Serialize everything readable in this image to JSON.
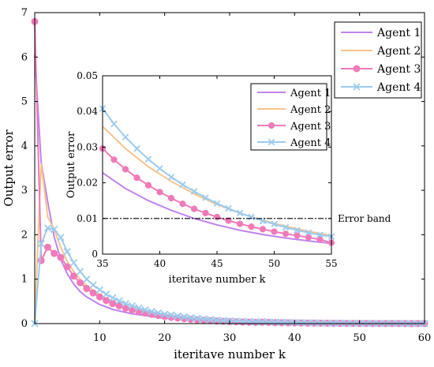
{
  "chart_data": [
    {
      "id": "main",
      "type": "line",
      "xlabel": "iteritave number k",
      "ylabel": "Output error",
      "xlim": [
        0,
        60
      ],
      "ylim": [
        0,
        7
      ],
      "xticks": [
        10,
        20,
        30,
        40,
        50,
        60
      ],
      "yticks": [
        0,
        1,
        2,
        3,
        4,
        5,
        6,
        7
      ],
      "legend_position": "top-right",
      "series": [
        {
          "name": "Agent 1",
          "color": "#c183ef",
          "marker": "none",
          "x": [
            0,
            1,
            2,
            3,
            4,
            5,
            6,
            7,
            8,
            10,
            12,
            15,
            20,
            25,
            30,
            35,
            40,
            45,
            50,
            55,
            60
          ],
          "y": [
            6.05,
            3.62,
            2.74,
            1.95,
            1.45,
            1.12,
            0.89,
            0.72,
            0.6,
            0.43,
            0.32,
            0.22,
            0.12,
            0.07,
            0.04,
            0.023,
            0.013,
            0.007,
            0.004,
            0.002,
            0.001
          ]
        },
        {
          "name": "Agent 2",
          "color": "#f7c48e",
          "marker": "none",
          "x": [
            0,
            1,
            2,
            3,
            4,
            5,
            6,
            7,
            8,
            10,
            12,
            15,
            20,
            25,
            30,
            35,
            40,
            45,
            50,
            55,
            60
          ],
          "y": [
            0.1,
            3.6,
            2.4,
            2.12,
            1.72,
            1.4,
            1.17,
            0.99,
            0.85,
            0.64,
            0.5,
            0.35,
            0.2,
            0.12,
            0.07,
            0.036,
            0.02,
            0.011,
            0.006,
            0.003,
            0.002
          ]
        },
        {
          "name": "Agent 3",
          "color": "#f07ab8",
          "marker": "circle",
          "x": [
            0,
            1,
            2,
            3,
            4,
            5,
            6,
            7,
            8,
            9,
            10,
            11,
            12,
            13,
            14,
            15,
            16,
            17,
            18,
            19,
            20,
            21,
            22,
            23,
            24,
            25,
            26,
            27,
            28,
            29,
            30,
            31,
            32,
            33,
            34,
            35,
            36,
            37,
            38,
            39,
            40,
            41,
            42,
            43,
            44,
            45,
            46,
            47,
            48,
            49,
            50,
            51,
            52,
            53,
            54,
            55,
            56,
            57,
            58,
            59,
            60
          ],
          "y": [
            6.8,
            1.42,
            1.72,
            1.58,
            1.49,
            1.28,
            1.07,
            0.92,
            0.79,
            0.69,
            0.6,
            0.52,
            0.45,
            0.4,
            0.35,
            0.31,
            0.27,
            0.24,
            0.21,
            0.185,
            0.16,
            0.14,
            0.125,
            0.11,
            0.097,
            0.085,
            0.075,
            0.066,
            0.058,
            0.051,
            0.045,
            0.04,
            0.035,
            0.031,
            0.027,
            0.03,
            0.026,
            0.022,
            0.019,
            0.017,
            0.015,
            0.013,
            0.011,
            0.01,
            0.009,
            0.008,
            0.007,
            0.006,
            0.005,
            0.0045,
            0.004,
            0.0035,
            0.003,
            0.0027,
            0.0024,
            0.003,
            0.002,
            0.0018,
            0.0016,
            0.0014,
            0.0012
          ]
        },
        {
          "name": "Agent 4",
          "color": "#9ccbee",
          "marker": "x",
          "x": [
            0,
            1,
            2,
            3,
            4,
            5,
            6,
            7,
            8,
            9,
            10,
            11,
            12,
            13,
            14,
            15,
            16,
            17,
            18,
            19,
            20,
            21,
            22,
            23,
            24,
            25,
            26,
            27,
            28,
            29,
            30,
            31,
            32,
            33,
            34,
            35,
            36,
            37,
            38,
            39,
            40,
            41,
            42,
            43,
            44,
            45,
            46,
            47,
            48,
            49,
            50,
            51,
            52,
            53,
            54,
            55,
            56,
            57,
            58,
            59,
            60
          ],
          "y": [
            0,
            1.8,
            2.15,
            2.12,
            1.94,
            1.62,
            1.37,
            1.17,
            1.0,
            0.87,
            0.76,
            0.66,
            0.58,
            0.51,
            0.45,
            0.4,
            0.35,
            0.31,
            0.27,
            0.24,
            0.21,
            0.19,
            0.17,
            0.15,
            0.13,
            0.115,
            0.1,
            0.09,
            0.08,
            0.07,
            0.062,
            0.055,
            0.049,
            0.044,
            0.039,
            0.041,
            0.036,
            0.032,
            0.029,
            0.026,
            0.023,
            0.02,
            0.018,
            0.016,
            0.014,
            0.013,
            0.011,
            0.01,
            0.009,
            0.008,
            0.007,
            0.0065,
            0.006,
            0.0052,
            0.0047,
            0.0042,
            0.0037,
            0.0033,
            0.003,
            0.0027,
            0.0024
          ]
        }
      ]
    },
    {
      "id": "inset",
      "type": "line",
      "xlabel": "iteritave number k",
      "ylabel": "Output error",
      "xlim": [
        35,
        55
      ],
      "ylim": [
        0,
        0.05
      ],
      "xticks": [
        35,
        40,
        45,
        50,
        55
      ],
      "yticks": [
        "0",
        "0.01",
        "0.02",
        "0.03",
        "0.04",
        "0.05"
      ],
      "legend_position": "top-right",
      "annotations": [
        {
          "text": "Error band",
          "y": 0.01
        }
      ],
      "series": [
        {
          "name": "Agent 1",
          "color": "#c183ef",
          "marker": "none",
          "x": [
            35,
            37,
            39,
            41,
            43,
            45,
            47,
            49,
            51,
            53,
            55
          ],
          "y": [
            0.0228,
            0.0184,
            0.015,
            0.0123,
            0.01,
            0.0082,
            0.0067,
            0.0055,
            0.0045,
            0.0037,
            0.003
          ]
        },
        {
          "name": "Agent 2",
          "color": "#f7c48e",
          "marker": "none",
          "x": [
            35,
            37,
            39,
            41,
            43,
            45,
            47,
            49,
            51,
            53,
            55
          ],
          "y": [
            0.0358,
            0.0296,
            0.0245,
            0.0204,
            0.0169,
            0.0139,
            0.0115,
            0.0095,
            0.0078,
            0.0064,
            0.0052
          ]
        },
        {
          "name": "Agent 3",
          "color": "#f07ab8",
          "marker": "circle",
          "x": [
            35,
            36,
            37,
            38,
            39,
            40,
            41,
            42,
            43,
            44,
            45,
            46,
            47,
            48,
            49,
            50,
            51,
            52,
            53,
            54,
            55
          ],
          "y": [
            0.0296,
            0.0265,
            0.0238,
            0.0214,
            0.0193,
            0.0174,
            0.0157,
            0.0141,
            0.0127,
            0.0115,
            0.0104,
            0.0094,
            0.0085,
            0.0077,
            0.007,
            0.0063,
            0.0057,
            0.0052,
            0.0047,
            0.0041,
            0.0032
          ]
        },
        {
          "name": "Agent 4",
          "color": "#9ccbee",
          "marker": "x",
          "x": [
            35,
            36,
            37,
            38,
            39,
            40,
            41,
            42,
            43,
            44,
            45,
            46,
            47,
            48,
            49,
            50,
            51,
            52,
            53,
            54,
            55
          ],
          "y": [
            0.0408,
            0.0365,
            0.0328,
            0.0296,
            0.0266,
            0.024,
            0.0216,
            0.0195,
            0.0176,
            0.0158,
            0.0142,
            0.0128,
            0.0115,
            0.0104,
            0.0093,
            0.0084,
            0.0075,
            0.0067,
            0.006,
            0.0054,
            0.0049
          ]
        }
      ]
    }
  ]
}
